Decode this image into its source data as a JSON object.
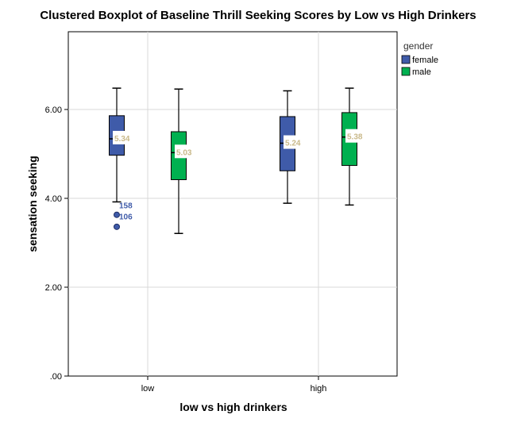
{
  "chart_data": {
    "type": "boxplot",
    "title": "Clustered Boxplot of Baseline Thrill Seeking Scores by Low vs High Drinkers",
    "xlabel": "low vs high drinkers",
    "ylabel": "sensation seeking",
    "ylim": [
      0,
      7.75
    ],
    "yticks": [
      0,
      2,
      4,
      6
    ],
    "ytick_labels": [
      ".00",
      "2.00",
      "4.00",
      "6.00"
    ],
    "categories": [
      "low",
      "high"
    ],
    "grid": true,
    "legend": {
      "title": "gender",
      "placement": "top-right"
    },
    "series": [
      {
        "name": "female",
        "color": "#3f5ba9",
        "boxes": [
          {
            "category": "low",
            "min": 3.92,
            "q1": 4.97,
            "median": 5.34,
            "q3": 5.86,
            "max": 6.48,
            "median_label": "5.34",
            "outliers": [
              {
                "value": 3.63,
                "label": "158"
              },
              {
                "value": 3.36,
                "label": "106"
              }
            ]
          },
          {
            "category": "high",
            "min": 3.89,
            "q1": 4.62,
            "median": 5.24,
            "q3": 5.84,
            "max": 6.42,
            "median_label": "5.24",
            "outliers": []
          }
        ]
      },
      {
        "name": "male",
        "color": "#00b050",
        "boxes": [
          {
            "category": "low",
            "min": 3.21,
            "q1": 4.42,
            "median": 5.03,
            "q3": 5.5,
            "max": 6.46,
            "median_label": "5.03",
            "outliers": []
          },
          {
            "category": "high",
            "min": 3.85,
            "q1": 4.74,
            "median": 5.38,
            "q3": 5.93,
            "max": 6.48,
            "median_label": "5.38",
            "outliers": []
          }
        ]
      }
    ],
    "colors": {
      "median_label_text": "#c9b98a",
      "outlier_label_text": "#3f5ba9",
      "grid": "#d9d9d9"
    }
  }
}
